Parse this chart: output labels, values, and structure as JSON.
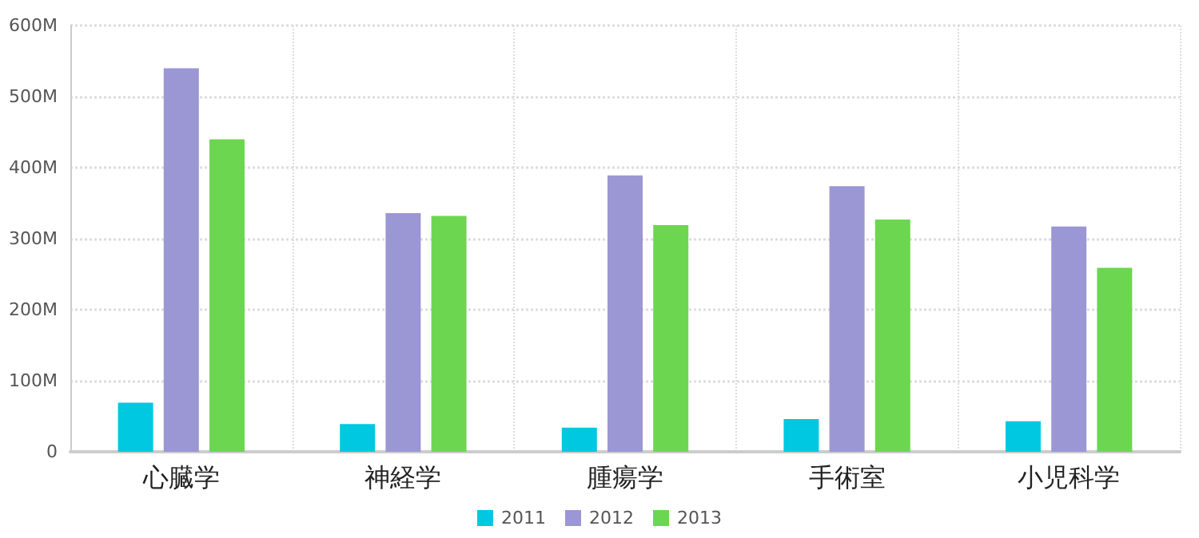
{
  "chart_data": {
    "type": "bar",
    "categories": [
      "心臓学",
      "神経学",
      "腫瘍学",
      "手術室",
      "小児科学"
    ],
    "series": [
      {
        "name": "2011",
        "color": "#00c8e0",
        "values": [
          69,
          39,
          34,
          46,
          43
        ]
      },
      {
        "name": "2012",
        "color": "#9b97d4",
        "values": [
          540,
          336,
          389,
          374,
          317
        ]
      },
      {
        "name": "2013",
        "color": "#6dd650",
        "values": [
          440,
          332,
          319,
          327,
          259
        ]
      }
    ],
    "ylim": [
      0,
      600
    ],
    "yticks": [
      0,
      {
        "value": 100,
        "label": "100M"
      },
      {
        "value": 200,
        "label": "200M"
      },
      {
        "value": 300,
        "label": "300M"
      },
      {
        "value": 400,
        "label": "400M"
      },
      {
        "value": 500,
        "label": "500M"
      },
      {
        "value": 600,
        "label": "600M"
      }
    ],
    "grid": true,
    "legend": "bottom"
  }
}
